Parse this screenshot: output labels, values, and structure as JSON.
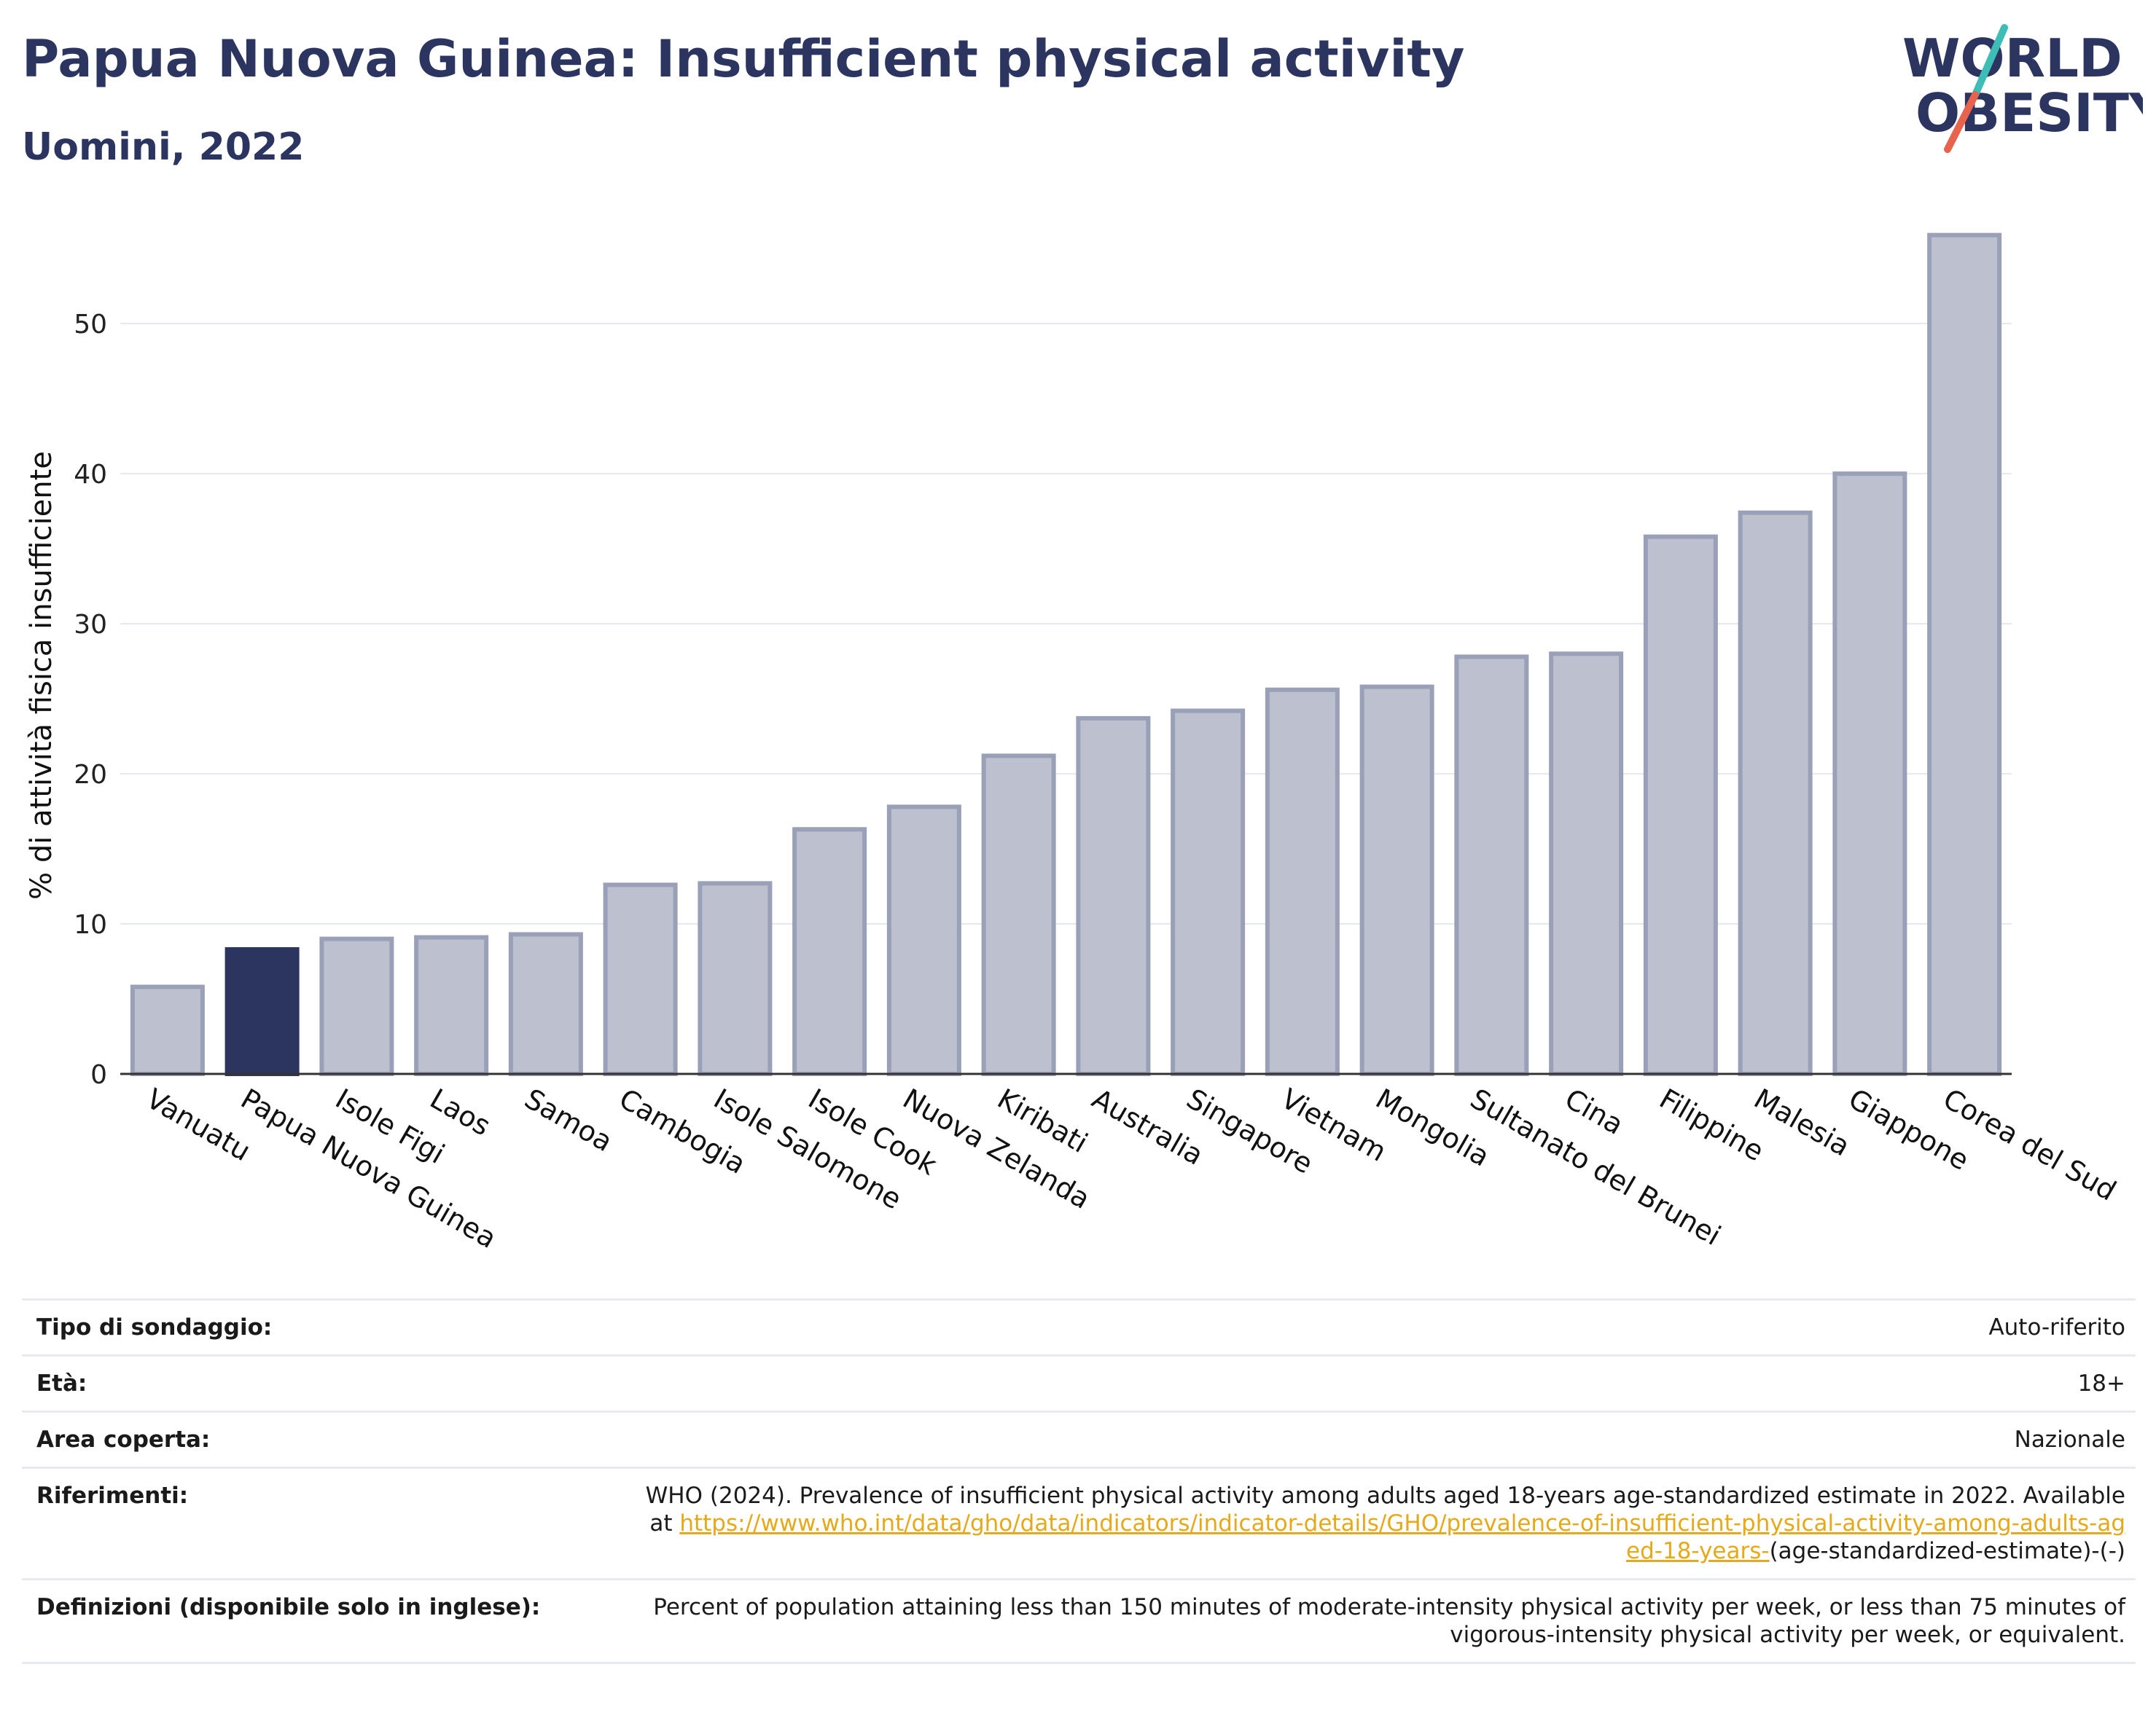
{
  "header": {
    "title": "Papua Nuova Guinea: Insufficient physical activity",
    "subtitle": "Uomini, 2022"
  },
  "logo": {
    "line1": "WORLD",
    "line2": "OBESITY",
    "accent_teal": "#3dbdb6",
    "accent_red": "#e8634e",
    "text_color": "#2b3560"
  },
  "colors": {
    "bar_default_fill": "#bcc0cf",
    "bar_default_stroke": "#9aa0b8",
    "bar_highlight_fill": "#2b3560",
    "gridline": "#e6e8ef"
  },
  "chart_data": {
    "type": "bar",
    "title": "Papua Nuova Guinea: Insufficient physical activity",
    "subtitle": "Uomini, 2022",
    "xlabel": "",
    "ylabel": "% di attività fisica insufficiente",
    "ylim": [
      0,
      57
    ],
    "yticks": [
      0,
      10,
      20,
      30,
      40,
      50
    ],
    "grid": true,
    "highlight": "Papua Nuova Guinea",
    "categories": [
      "Vanuatu",
      "Papua Nuova Guinea",
      "Isole Figi",
      "Laos",
      "Samoa",
      "Cambogia",
      "Isole Salomone",
      "Isole Cook",
      "Nuova Zelanda",
      "Kiribati",
      "Australia",
      "Singapore",
      "Vietnam",
      "Mongolia",
      "Sultanato del Brunei",
      "Cina",
      "Filippine",
      "Malesia",
      "Giappone",
      "Corea del Sud"
    ],
    "values": [
      5.8,
      8.3,
      9.0,
      9.1,
      9.3,
      12.6,
      12.7,
      16.3,
      17.8,
      21.2,
      23.7,
      24.2,
      25.6,
      25.8,
      27.8,
      28.0,
      35.8,
      37.4,
      40.0,
      55.9
    ]
  },
  "meta": {
    "survey_type": {
      "label": "Tipo di sondaggio:",
      "value": "Auto-riferito"
    },
    "age": {
      "label": "Età:",
      "value": "18+"
    },
    "coverage": {
      "label": "Area coperta:",
      "value": "Nazionale"
    },
    "references": {
      "label": "Riferimenti:",
      "text_before": "WHO (2024). Prevalence of insufficient physical activity among adults aged 18-years age-standardized estimate in 2022. Available at",
      "link": "https://www.who.int/data/gho/data/indicators/indicator-details/GHO/prevalence-of-insufficient-physical-activity-among-adults-aged-18-years-",
      "text_after": "(age-standardized-estimate)-(-)"
    },
    "definitions": {
      "label": "Definizioni (disponibile solo in inglese):",
      "value": "Percent of population attaining less than 150 minutes of moderate-intensity physical activity per week, or less than 75 minutes of vigorous-intensity physical activity per week, or equivalent."
    }
  }
}
